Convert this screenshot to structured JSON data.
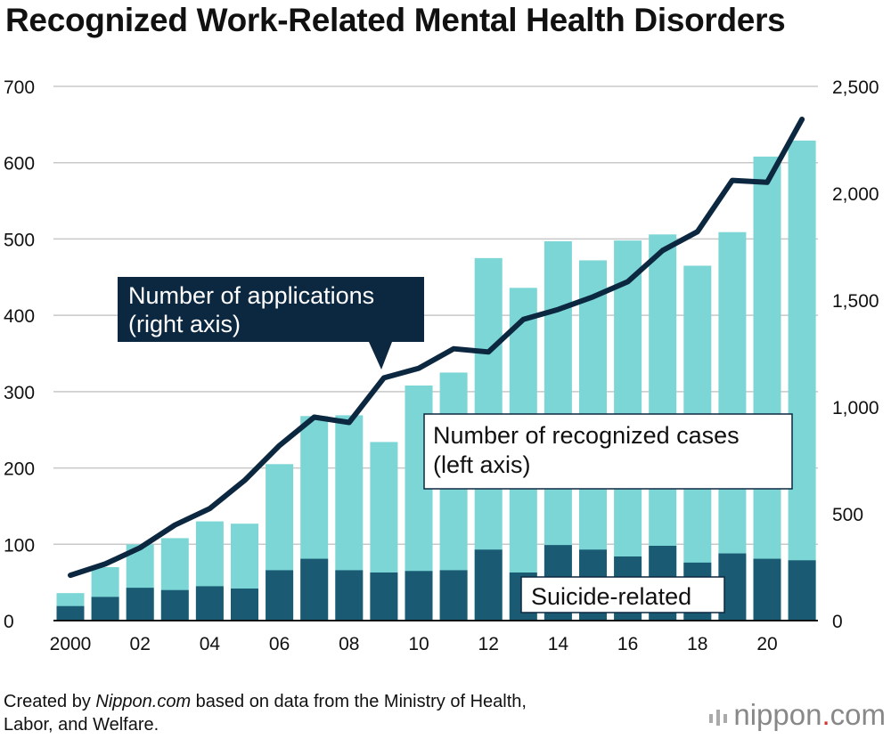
{
  "title": "Recognized Work-Related Mental Health Disorders",
  "chart_data": {
    "type": "bar",
    "x_tick_labels": [
      "2000",
      "02",
      "04",
      "06",
      "08",
      "10",
      "12",
      "14",
      "16",
      "18",
      "20"
    ],
    "years": [
      2000,
      2001,
      2002,
      2003,
      2004,
      2005,
      2006,
      2007,
      2008,
      2009,
      2010,
      2011,
      2012,
      2013,
      2014,
      2015,
      2016,
      2017,
      2018,
      2019,
      2020,
      2021
    ],
    "left_axis": {
      "ylim": [
        0,
        700
      ],
      "ticks": [
        "0",
        "100",
        "200",
        "300",
        "400",
        "500",
        "600",
        "700"
      ]
    },
    "right_axis": {
      "ylim": [
        0,
        2500
      ],
      "ticks": [
        "0",
        "500",
        "1,000",
        "1,500",
        "2,000",
        "2,500"
      ]
    },
    "grid": "horizontal",
    "series": [
      {
        "name": "Number of recognized cases",
        "axis_label": "(left axis)",
        "kind": "bar",
        "color": "#7dd6d6",
        "values": [
          36,
          70,
          100,
          108,
          130,
          127,
          205,
          268,
          269,
          234,
          308,
          325,
          475,
          436,
          497,
          472,
          498,
          506,
          465,
          509,
          608,
          629
        ]
      },
      {
        "name": "Suicide-related",
        "kind": "bar",
        "color": "#1a5a73",
        "values": [
          19,
          31,
          43,
          40,
          45,
          42,
          66,
          81,
          66,
          63,
          65,
          66,
          93,
          63,
          99,
          93,
          84,
          98,
          76,
          88,
          81,
          79
        ]
      },
      {
        "name": "Number of applications",
        "axis_label": "(right axis)",
        "kind": "line",
        "color": "#0c2740",
        "values": [
          212,
          265,
          341,
          447,
          524,
          656,
          819,
          952,
          927,
          1136,
          1181,
          1272,
          1257,
          1409,
          1456,
          1515,
          1586,
          1732,
          1820,
          2060,
          2051,
          2346
        ]
      }
    ],
    "annotations": {
      "applications_label": [
        "Number of applications",
        "(right axis)"
      ],
      "cases_label": [
        "Number of recognized cases",
        "(left axis)"
      ],
      "suicide_label": "Suicide-related"
    }
  },
  "source": {
    "prefix": "Created by ",
    "publisher": "Nippon.com",
    "suffix_line1": " based on data from the Ministry of Health,",
    "line2": "Labor, and Welfare."
  },
  "brand": {
    "part1": "nippon",
    "dot": ".",
    "part2": "com"
  }
}
